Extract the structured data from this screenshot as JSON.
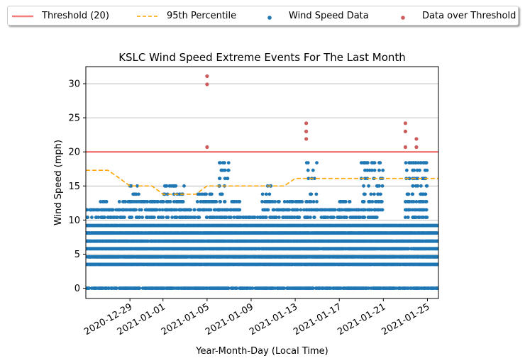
{
  "chart_data": {
    "type": "scatter",
    "title": "KSLC Wind Speed Extreme Events For The Last Month",
    "xlabel": "Year-Month-Day (Local Time)",
    "ylabel": "Wind Speed (mph)",
    "xlim": [
      "2020-12-25",
      "2021-01-26"
    ],
    "ylim": [
      -1.5,
      32.5
    ],
    "x_ticks": [
      "2020-12-29",
      "2021-01-01",
      "2021-01-05",
      "2021-01-09",
      "2021-01-13",
      "2021-01-17",
      "2021-01-21",
      "2021-01-25"
    ],
    "y_ticks": [
      0,
      5,
      10,
      15,
      20,
      25,
      30
    ],
    "grid": "horizontal",
    "legend_position": "top",
    "wind_speed_levels": [
      3.5,
      4.6,
      5.8,
      6.9,
      8.1,
      9.2,
      10.4,
      11.5,
      12.7,
      13.8,
      15.0,
      16.1,
      17.3,
      18.4
    ],
    "series": [
      {
        "name": "Threshold (20)",
        "kind": "line",
        "color": "#f15b5b",
        "y": 20
      },
      {
        "name": "95th Percentile",
        "kind": "dashed-line",
        "color": "#ffa500",
        "points": [
          [
            "2020-12-25",
            17.3
          ],
          [
            "2020-12-27",
            17.3
          ],
          [
            "2020-12-28",
            16.2
          ],
          [
            "2020-12-29",
            15.0
          ],
          [
            "2020-12-31",
            15.0
          ],
          [
            "2021-01-01",
            13.8
          ],
          [
            "2021-01-04",
            13.8
          ],
          [
            "2021-01-05",
            15.0
          ],
          [
            "2021-01-12",
            15.0
          ],
          [
            "2021-01-13",
            16.1
          ],
          [
            "2021-01-26",
            16.1
          ]
        ]
      },
      {
        "name": "Wind Speed Data",
        "kind": "scatter",
        "color": "#1f77b4",
        "daily_max": [
          [
            "2020-12-25",
            11.5
          ],
          [
            "2020-12-26",
            12.7
          ],
          [
            "2020-12-27",
            11.5
          ],
          [
            "2020-12-28",
            12.7
          ],
          [
            "2020-12-29",
            15.0
          ],
          [
            "2020-12-30",
            12.7
          ],
          [
            "2020-12-31",
            12.7
          ],
          [
            "2021-01-01",
            15.0
          ],
          [
            "2021-01-02",
            15.0
          ],
          [
            "2021-01-03",
            11.5
          ],
          [
            "2021-01-04",
            13.8
          ],
          [
            "2021-01-05",
            13.8
          ],
          [
            "2021-01-06",
            18.4
          ],
          [
            "2021-01-07",
            12.7
          ],
          [
            "2021-01-08",
            10.4
          ],
          [
            "2021-01-09",
            10.4
          ],
          [
            "2021-01-10",
            15.0
          ],
          [
            "2021-01-11",
            12.7
          ],
          [
            "2021-01-12",
            12.7
          ],
          [
            "2021-01-13",
            12.7
          ],
          [
            "2021-01-14",
            18.4
          ],
          [
            "2021-01-15",
            11.5
          ],
          [
            "2021-01-16",
            11.5
          ],
          [
            "2021-01-17",
            12.7
          ],
          [
            "2021-01-18",
            11.5
          ],
          [
            "2021-01-19",
            18.4
          ],
          [
            "2021-01-20",
            18.4
          ],
          [
            "2021-01-21",
            9.2
          ],
          [
            "2021-01-22",
            9.2
          ],
          [
            "2021-01-23",
            18.4
          ],
          [
            "2021-01-24",
            18.4
          ],
          [
            "2021-01-25",
            9.2
          ],
          [
            "2021-01-26",
            9.2
          ]
        ],
        "calm_points": 0
      },
      {
        "name": "Data over Threshold",
        "kind": "scatter",
        "color": "#cd5c5c",
        "points": [
          [
            "2021-01-05",
            20.7
          ],
          [
            "2021-01-05",
            29.9
          ],
          [
            "2021-01-05",
            31.1
          ],
          [
            "2021-01-14",
            21.9
          ],
          [
            "2021-01-14",
            23.0
          ],
          [
            "2021-01-14",
            24.2
          ],
          [
            "2021-01-23",
            20.7
          ],
          [
            "2021-01-23",
            23.0
          ],
          [
            "2021-01-23",
            24.2
          ],
          [
            "2021-01-24",
            20.7
          ],
          [
            "2021-01-24",
            21.9
          ]
        ]
      }
    ]
  }
}
